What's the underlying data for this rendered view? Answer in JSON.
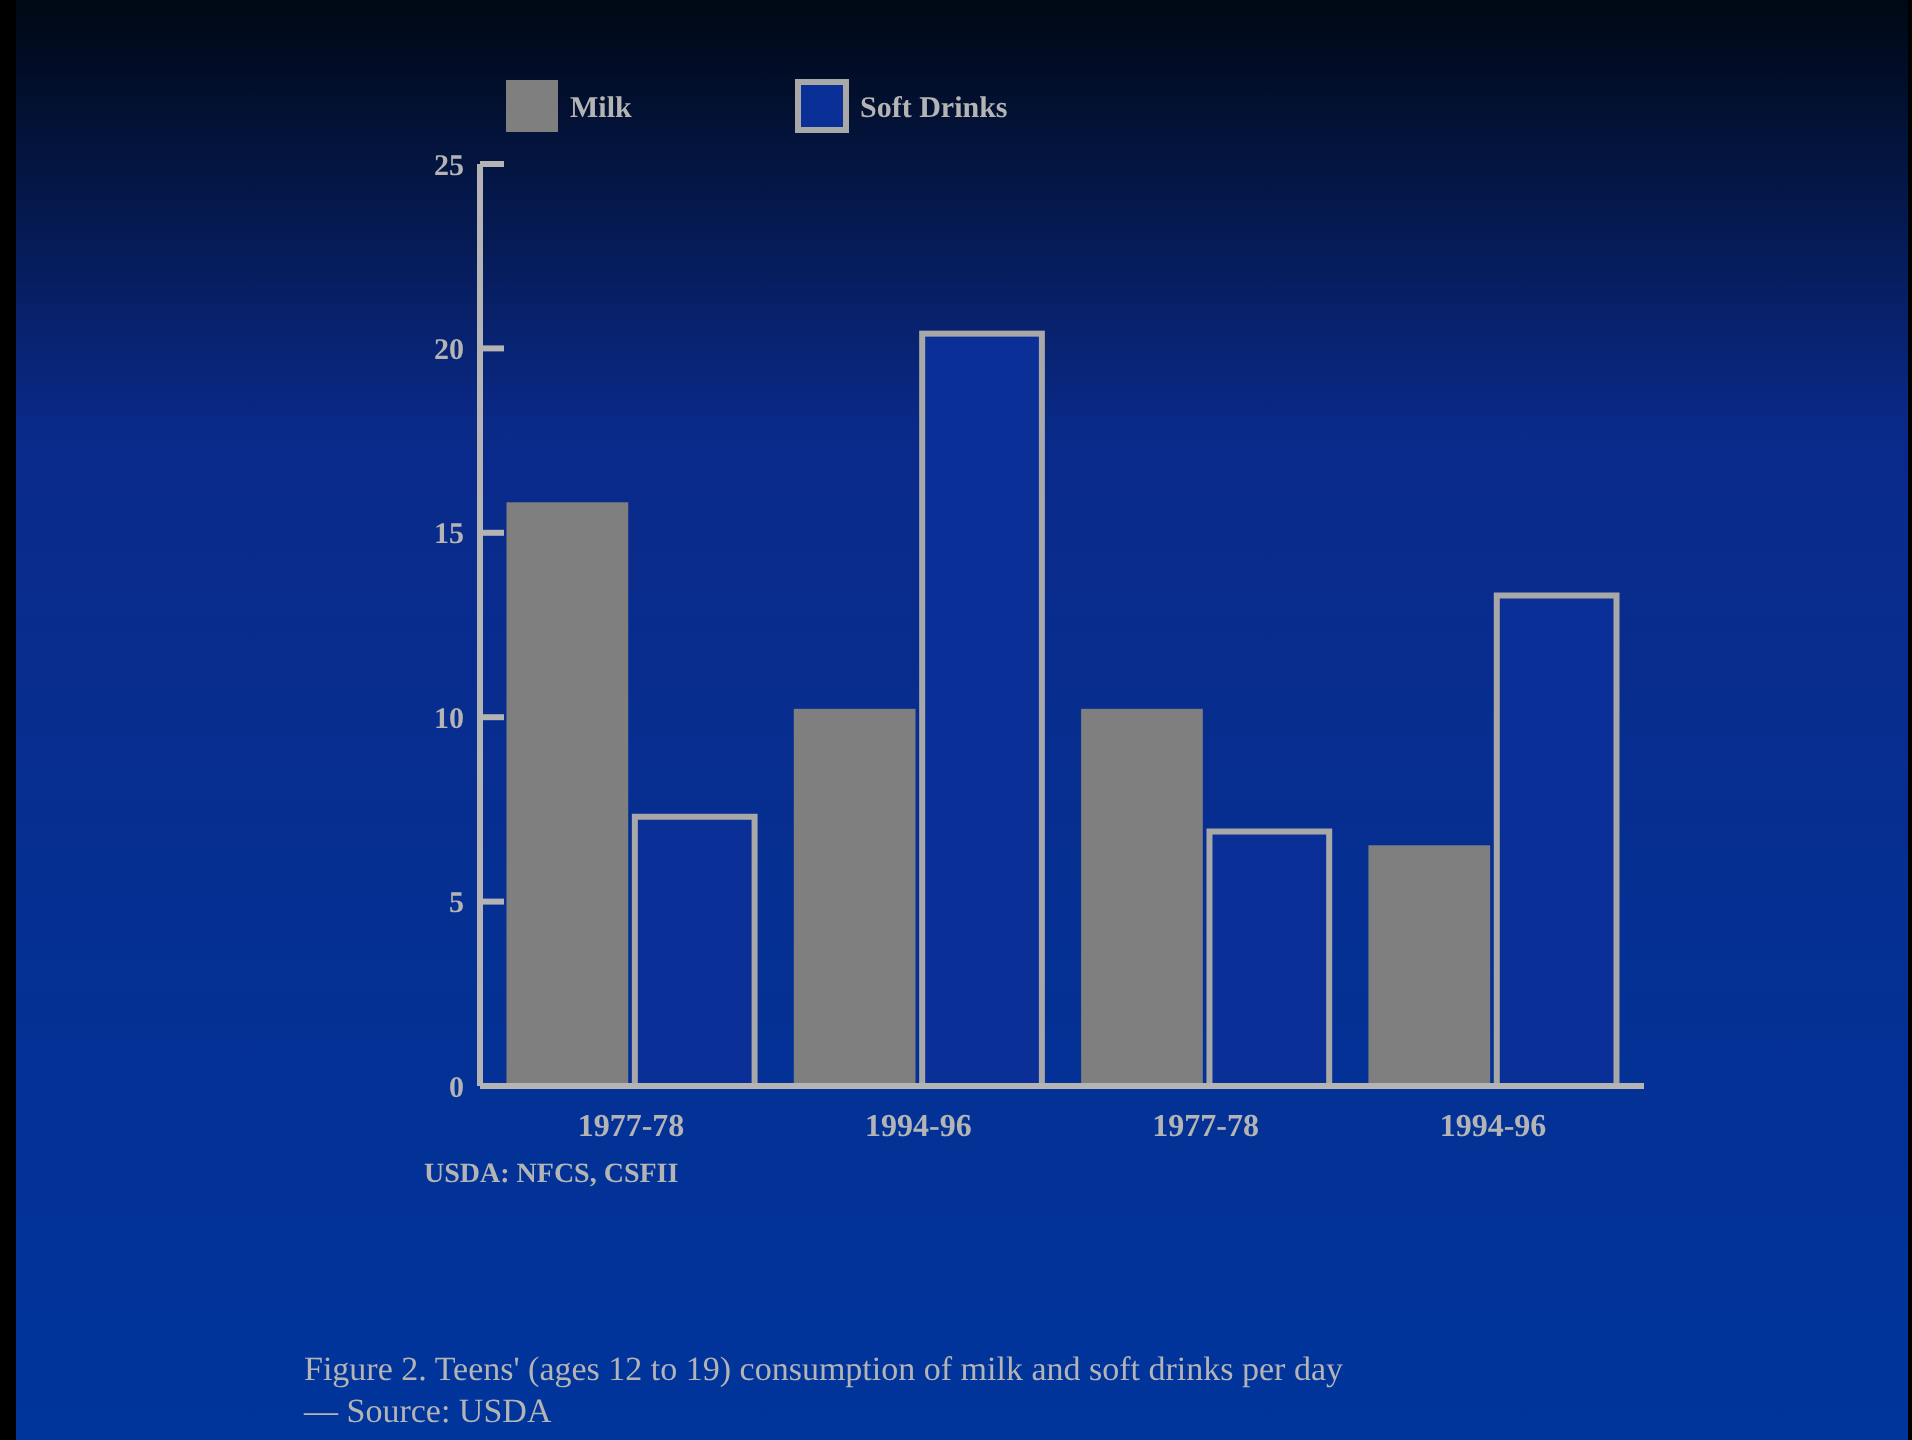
{
  "chart_data": {
    "type": "bar",
    "categories": [
      "1977-78",
      "1994-96",
      "1977-78",
      "1994-96"
    ],
    "series": [
      {
        "name": "Milk",
        "color": "#7f7f7f",
        "values": [
          15.8,
          10.2,
          10.2,
          6.5
        ]
      },
      {
        "name": "Soft Drinks",
        "color": "#a8a8a8",
        "values": [
          7.3,
          20.4,
          6.9,
          13.3
        ]
      }
    ],
    "ylim": [
      0,
      25
    ],
    "yticks": [
      0,
      5,
      10,
      15,
      20,
      25
    ],
    "grid": false,
    "legend": "top",
    "annotations": [
      "USDA: NFCS, CSFII",
      "Figure 2. Teens' (ages 12 to 19) consumption of milk and soft drinks per day",
      "— Source: USDA"
    ]
  }
}
